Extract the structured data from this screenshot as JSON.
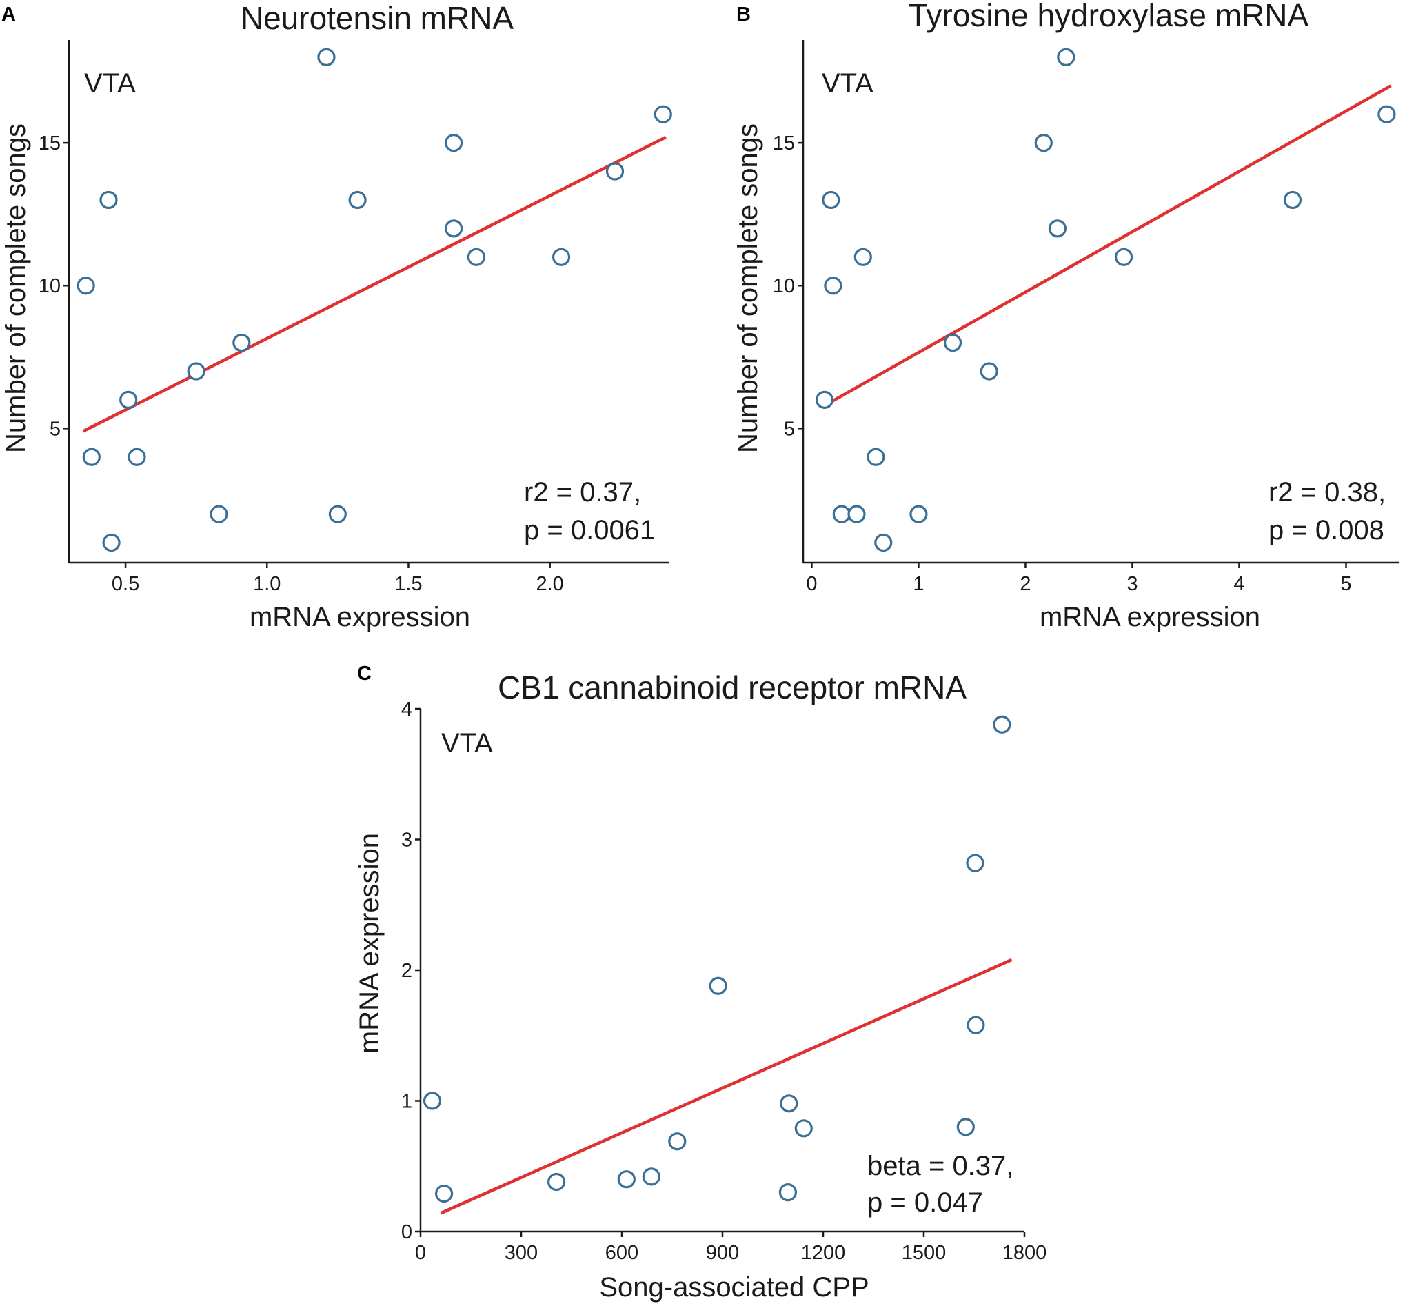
{
  "chart_data": [
    {
      "type": "scatter",
      "panel_letter": "A",
      "title": "Neurotensin mRNA",
      "region_label": "VTA",
      "xlabel": "mRNA expression",
      "ylabel": "Number of complete songs",
      "xlim": [
        0.3,
        2.42
      ],
      "ylim": [
        0.3,
        18.6
      ],
      "xticks": [
        0.5,
        1.0,
        1.5,
        2.0
      ],
      "xtick_labels": [
        "0.5",
        "1.0",
        "1.5",
        "2.0"
      ],
      "yticks": [
        5,
        10,
        15
      ],
      "ytick_labels": [
        "5",
        "10",
        "15"
      ],
      "stats": [
        "r2 = 0.37,",
        "p = 0.0061"
      ],
      "points": [
        {
          "x": 0.36,
          "y": 10
        },
        {
          "x": 0.38,
          "y": 4
        },
        {
          "x": 0.44,
          "y": 13
        },
        {
          "x": 0.45,
          "y": 1
        },
        {
          "x": 0.51,
          "y": 6
        },
        {
          "x": 0.54,
          "y": 4
        },
        {
          "x": 0.75,
          "y": 7
        },
        {
          "x": 0.83,
          "y": 2
        },
        {
          "x": 0.91,
          "y": 8
        },
        {
          "x": 1.21,
          "y": 18
        },
        {
          "x": 1.25,
          "y": 2
        },
        {
          "x": 1.32,
          "y": 13
        },
        {
          "x": 1.66,
          "y": 15
        },
        {
          "x": 1.66,
          "y": 12
        },
        {
          "x": 1.74,
          "y": 11
        },
        {
          "x": 2.04,
          "y": 11
        },
        {
          "x": 2.23,
          "y": 14
        },
        {
          "x": 2.4,
          "y": 16
        }
      ],
      "fit_line": {
        "x": [
          0.35,
          2.41
        ],
        "y": [
          4.9,
          15.2
        ]
      }
    },
    {
      "type": "scatter",
      "panel_letter": "B",
      "title": "Tyrosine hydroxylase mRNA",
      "region_label": "VTA",
      "xlabel": "mRNA expression",
      "ylabel": "Number of complete songs",
      "xlim": [
        -0.08,
        5.5
      ],
      "ylim": [
        0.3,
        18.6
      ],
      "xticks": [
        0,
        1,
        2,
        3,
        4,
        5
      ],
      "xtick_labels": [
        "0",
        "1",
        "2",
        "3",
        "4",
        "5"
      ],
      "yticks": [
        5,
        10,
        15
      ],
      "ytick_labels": [
        "5",
        "10",
        "15"
      ],
      "stats": [
        "r2 = 0.38,",
        "p = 0.008"
      ],
      "points": [
        {
          "x": 0.12,
          "y": 6
        },
        {
          "x": 0.18,
          "y": 13
        },
        {
          "x": 0.2,
          "y": 10
        },
        {
          "x": 0.28,
          "y": 2
        },
        {
          "x": 0.42,
          "y": 2
        },
        {
          "x": 0.48,
          "y": 11
        },
        {
          "x": 0.6,
          "y": 4
        },
        {
          "x": 0.67,
          "y": 1
        },
        {
          "x": 1.0,
          "y": 2
        },
        {
          "x": 1.32,
          "y": 8
        },
        {
          "x": 1.66,
          "y": 7
        },
        {
          "x": 2.17,
          "y": 15
        },
        {
          "x": 2.3,
          "y": 12
        },
        {
          "x": 2.38,
          "y": 18
        },
        {
          "x": 2.92,
          "y": 11
        },
        {
          "x": 4.5,
          "y": 13
        },
        {
          "x": 5.38,
          "y": 16
        }
      ],
      "fit_line": {
        "x": [
          0.12,
          5.42
        ],
        "y": [
          5.8,
          17.0
        ]
      }
    },
    {
      "type": "scatter",
      "panel_letter": "C",
      "title": "CB1 cannabinoid receptor mRNA",
      "region_label": "VTA",
      "xlabel": "Song-associated CPP",
      "ylabel": "mRNA expression",
      "xlim": [
        0,
        1800
      ],
      "ylim": [
        0,
        4.0
      ],
      "xticks": [
        0,
        300,
        600,
        900,
        1200,
        1500,
        1800
      ],
      "xtick_labels": [
        "0",
        "300",
        "600",
        "900",
        "1200",
        "1500",
        "1800"
      ],
      "yticks": [
        0,
        1,
        2,
        3,
        4
      ],
      "ytick_labels": [
        "0",
        "1",
        "2",
        "3",
        "4"
      ],
      "stats": [
        "beta = 0.37,",
        "p = 0.047"
      ],
      "points": [
        {
          "x": 35,
          "y": 1.0
        },
        {
          "x": 70,
          "y": 0.29
        },
        {
          "x": 405,
          "y": 0.38
        },
        {
          "x": 614,
          "y": 0.4
        },
        {
          "x": 688,
          "y": 0.42
        },
        {
          "x": 765,
          "y": 0.69
        },
        {
          "x": 887,
          "y": 1.88
        },
        {
          "x": 1095,
          "y": 0.3
        },
        {
          "x": 1098,
          "y": 0.98
        },
        {
          "x": 1142,
          "y": 0.79
        },
        {
          "x": 1625,
          "y": 0.8
        },
        {
          "x": 1653,
          "y": 2.82
        },
        {
          "x": 1655,
          "y": 1.58
        },
        {
          "x": 1733,
          "y": 3.88
        }
      ],
      "fit_line": {
        "x": [
          60,
          1762
        ],
        "y": [
          0.14,
          2.08
        ]
      }
    }
  ]
}
